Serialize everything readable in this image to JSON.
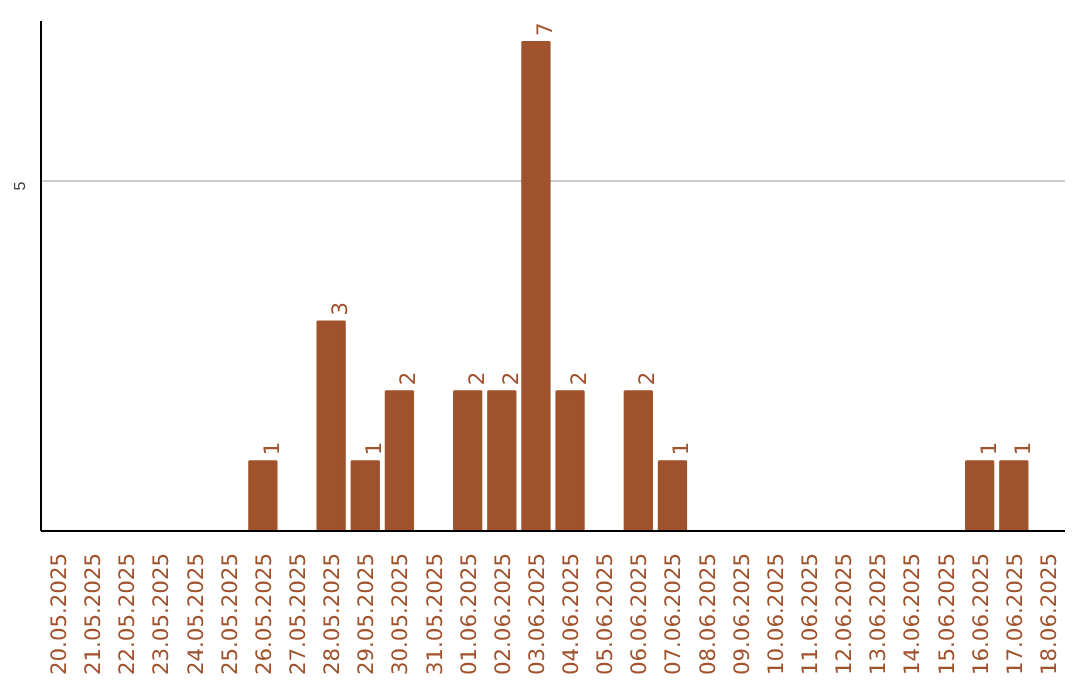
{
  "chart_data": {
    "type": "bar",
    "categories": [
      "20.05.2025",
      "21.05.2025",
      "22.05.2025",
      "23.05.2025",
      "24.05.2025",
      "25.05.2025",
      "26.05.2025",
      "27.05.2025",
      "28.05.2025",
      "29.05.2025",
      "30.05.2025",
      "31.05.2025",
      "01.06.2025",
      "02.06.2025",
      "03.06.2025",
      "04.06.2025",
      "05.06.2025",
      "06.06.2025",
      "07.06.2025",
      "08.06.2025",
      "09.06.2025",
      "10.06.2025",
      "11.06.2025",
      "12.06.2025",
      "13.06.2025",
      "14.06.2025",
      "15.06.2025",
      "16.06.2025",
      "17.06.2025",
      "18.06.2025"
    ],
    "values": [
      0,
      0,
      0,
      0,
      0,
      0,
      1,
      0,
      3,
      1,
      2,
      0,
      2,
      2,
      7,
      2,
      0,
      2,
      1,
      0,
      0,
      0,
      0,
      0,
      0,
      0,
      0,
      1,
      1,
      0
    ],
    "value_labels": [
      null,
      null,
      null,
      null,
      null,
      null,
      "1",
      null,
      "3",
      "1",
      "2",
      null,
      "2",
      "2",
      "7",
      "2",
      null,
      "2",
      "1",
      null,
      null,
      null,
      null,
      null,
      null,
      null,
      null,
      "1",
      "1",
      null
    ],
    "color": "#a0522d",
    "ylim": [
      0,
      7.3
    ],
    "yticks": [
      5
    ],
    "grid": "y"
  }
}
